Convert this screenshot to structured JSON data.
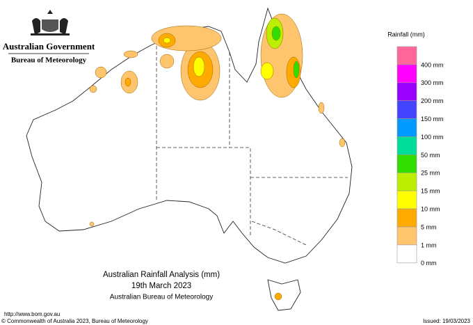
{
  "header": {
    "government": "Australian Government",
    "bureau": "Bureau of Meteorology"
  },
  "legend": {
    "title": "Rainfall (mm)",
    "items": [
      {
        "label": "400 mm",
        "color": "#ff6699"
      },
      {
        "label": "300 mm",
        "color": "#ff00ff"
      },
      {
        "label": "200 mm",
        "color": "#9900ff"
      },
      {
        "label": "150 mm",
        "color": "#4444ff"
      },
      {
        "label": "100 mm",
        "color": "#0099ff"
      },
      {
        "label": "50 mm",
        "color": "#00dd99"
      },
      {
        "label": "25 mm",
        "color": "#33dd00"
      },
      {
        "label": "15 mm",
        "color": "#bbee00"
      },
      {
        "label": "10 mm",
        "color": "#ffff00"
      },
      {
        "label": "5 mm",
        "color": "#ffaa00"
      },
      {
        "label": "1 mm",
        "color": "#ffc46e"
      },
      {
        "label": "0 mm",
        "color": "#ffffff"
      }
    ]
  },
  "map_title": {
    "lines": [
      "Australian Rainfall Analysis (mm)",
      "19th March 2023",
      "Australian Bureau of Meteorology"
    ]
  },
  "footer": {
    "url": "http://www.bom.gov.au",
    "copyright": "© Commonwealth of Australia 2023, Bureau of Meteorology",
    "issued": "Issued: 19/03/2023"
  }
}
